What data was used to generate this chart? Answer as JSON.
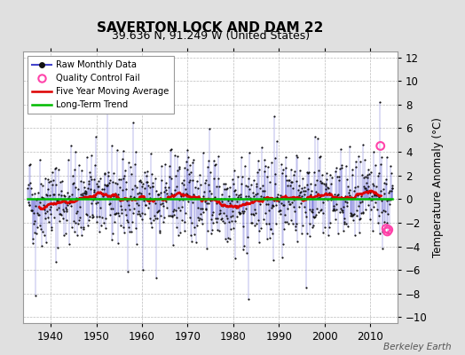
{
  "title": "SAVERTON LOCK AND DAM 22",
  "subtitle": "39.636 N, 91.249 W (United States)",
  "ylabel": "Temperature Anomaly (°C)",
  "credit": "Berkeley Earth",
  "xlim": [
    1934,
    2016
  ],
  "ylim": [
    -10.5,
    12.5
  ],
  "yticks": [
    -10,
    -8,
    -6,
    -4,
    -2,
    0,
    2,
    4,
    6,
    8,
    10,
    12
  ],
  "xticks": [
    1940,
    1950,
    1960,
    1970,
    1980,
    1990,
    2000,
    2010
  ],
  "start_year": 1935,
  "n_months": 960,
  "seed": 42,
  "bg_color": "#e0e0e0",
  "plot_bg_color": "#ffffff",
  "raw_line_color": "#4444cc",
  "raw_dot_color": "#111111",
  "moving_avg_color": "#dd0000",
  "trend_color": "#00bb00",
  "qc_fail_color": "#ff44aa",
  "qc_times": [
    2012.25,
    2013.5,
    2013.75,
    2014.0
  ],
  "qc_values": [
    4.5,
    -2.5,
    -2.75,
    -2.6
  ],
  "trend_intercept": 0.05,
  "trend_slope": 0.0,
  "legend_loc": "upper left",
  "title_fontsize": 11,
  "subtitle_fontsize": 9,
  "label_fontsize": 8.5,
  "tick_fontsize": 8.5
}
